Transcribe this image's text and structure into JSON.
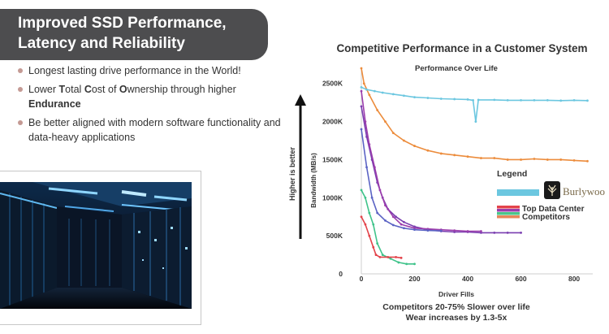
{
  "slide": {
    "title_line1": "Improved SSD Performance,",
    "title_line2": "Latency and Reliability",
    "bullets": [
      {
        "parts": [
          {
            "text": "Longest lasting drive performance in the World!",
            "bold": false
          }
        ]
      },
      {
        "parts": [
          {
            "text": "Lower ",
            "bold": false
          },
          {
            "text": "T",
            "bold": true
          },
          {
            "text": "otal ",
            "bold": false
          },
          {
            "text": "C",
            "bold": true
          },
          {
            "text": "ost of ",
            "bold": false
          },
          {
            "text": "O",
            "bold": true
          },
          {
            "text": "wnership through higher ",
            "bold": false
          },
          {
            "text": "Endurance",
            "bold": true
          }
        ]
      },
      {
        "parts": [
          {
            "text": "Be better aligned with modern software functionality and data-heavy applications",
            "bold": false
          }
        ]
      }
    ],
    "chart_heading": "Competitive Performance in a Customer System",
    "footnote_line1": "Competitors 20-75% Slower over life",
    "footnote_line2": "Wear increases by 1.3-5x",
    "higher_is_better": "Higher is better"
  },
  "chart_data": {
    "type": "line",
    "title": "Performance Over Life",
    "xlabel": "Driver Fills",
    "ylabel": "Bandwidth (MB/s)",
    "xlim": [
      0,
      870
    ],
    "ylim": [
      0,
      2700
    ],
    "x_ticks": [
      0,
      200,
      400,
      600,
      800
    ],
    "y_ticks": [
      {
        "value": 0,
        "label": "0"
      },
      {
        "value": 500,
        "label": "500K"
      },
      {
        "value": 1000,
        "label": "1000K"
      },
      {
        "value": 1500,
        "label": "1500K"
      },
      {
        "value": 2000,
        "label": "2000K"
      },
      {
        "value": 2500,
        "label": "2500K"
      }
    ],
    "grid": false,
    "legend_title": "Legend",
    "legend_position": "right",
    "legend_items": [
      {
        "label": "Burlywood",
        "color": "#6cc7e0",
        "kind": "logo"
      },
      {
        "label": "Top Data Center Competitors",
        "colors": [
          "#e3434a",
          "#9b3dac",
          "#4ac68a",
          "#e6875a"
        ],
        "kind": "stack"
      }
    ],
    "series": [
      {
        "role": "burlywood",
        "color": "#6cc7e0",
        "points": [
          [
            0,
            2450
          ],
          [
            20,
            2420
          ],
          [
            50,
            2400
          ],
          [
            80,
            2380
          ],
          [
            120,
            2360
          ],
          [
            160,
            2340
          ],
          [
            200,
            2320
          ],
          [
            250,
            2310
          ],
          [
            300,
            2300
          ],
          [
            350,
            2295
          ],
          [
            400,
            2290
          ],
          [
            420,
            2280
          ],
          [
            430,
            2000
          ],
          [
            440,
            2285
          ],
          [
            500,
            2285
          ],
          [
            550,
            2280
          ],
          [
            600,
            2280
          ],
          [
            650,
            2280
          ],
          [
            700,
            2280
          ],
          [
            750,
            2275
          ],
          [
            800,
            2280
          ],
          [
            850,
            2275
          ]
        ]
      },
      {
        "role": "competitor",
        "color": "#ec8c3c",
        "points": [
          [
            0,
            2700
          ],
          [
            10,
            2500
          ],
          [
            30,
            2350
          ],
          [
            60,
            2150
          ],
          [
            90,
            2000
          ],
          [
            120,
            1850
          ],
          [
            160,
            1750
          ],
          [
            200,
            1680
          ],
          [
            250,
            1620
          ],
          [
            300,
            1580
          ],
          [
            350,
            1560
          ],
          [
            400,
            1540
          ],
          [
            450,
            1520
          ],
          [
            500,
            1520
          ],
          [
            550,
            1500
          ],
          [
            600,
            1500
          ],
          [
            650,
            1510
          ],
          [
            700,
            1500
          ],
          [
            750,
            1500
          ],
          [
            800,
            1490
          ],
          [
            850,
            1480
          ]
        ]
      },
      {
        "role": "competitor",
        "color": "#7a3eb0",
        "points": [
          [
            0,
            2200
          ],
          [
            20,
            1800
          ],
          [
            40,
            1500
          ],
          [
            60,
            1200
          ],
          [
            80,
            1000
          ],
          [
            100,
            850
          ],
          [
            130,
            750
          ],
          [
            160,
            680
          ],
          [
            200,
            620
          ],
          [
            250,
            580
          ],
          [
            300,
            560
          ],
          [
            350,
            550
          ],
          [
            400,
            550
          ],
          [
            450,
            540
          ],
          [
            500,
            540
          ],
          [
            550,
            540
          ],
          [
            600,
            540
          ]
        ]
      },
      {
        "role": "competitor",
        "color": "#9b3dac",
        "points": [
          [
            0,
            2400
          ],
          [
            15,
            2000
          ],
          [
            30,
            1700
          ],
          [
            50,
            1400
          ],
          [
            70,
            1100
          ],
          [
            90,
            900
          ],
          [
            120,
            750
          ],
          [
            150,
            650
          ],
          [
            200,
            600
          ],
          [
            250,
            590
          ],
          [
            300,
            580
          ],
          [
            350,
            570
          ],
          [
            400,
            560
          ],
          [
            450,
            560
          ]
        ]
      },
      {
        "role": "competitor",
        "color": "#5b63c4",
        "points": [
          [
            0,
            1900
          ],
          [
            20,
            1400
          ],
          [
            40,
            1000
          ],
          [
            60,
            800
          ],
          [
            90,
            700
          ],
          [
            120,
            640
          ],
          [
            160,
            600
          ],
          [
            200,
            580
          ],
          [
            250,
            570
          ],
          [
            300,
            565
          ]
        ]
      },
      {
        "role": "competitor",
        "color": "#3fc38a",
        "points": [
          [
            0,
            1100
          ],
          [
            15,
            1000
          ],
          [
            30,
            800
          ],
          [
            45,
            650
          ],
          [
            60,
            400
          ],
          [
            80,
            250
          ],
          [
            110,
            200
          ],
          [
            140,
            150
          ],
          [
            170,
            130
          ],
          [
            200,
            130
          ]
        ]
      },
      {
        "role": "competitor",
        "color": "#e3434a",
        "points": [
          [
            0,
            750
          ],
          [
            15,
            650
          ],
          [
            30,
            500
          ],
          [
            45,
            350
          ],
          [
            55,
            250
          ],
          [
            70,
            220
          ],
          [
            100,
            220
          ],
          [
            130,
            220
          ],
          [
            150,
            210
          ]
        ]
      }
    ]
  },
  "icons": {
    "arrow": "up-arrow-icon",
    "logo": "burlywood-tree-icon"
  }
}
